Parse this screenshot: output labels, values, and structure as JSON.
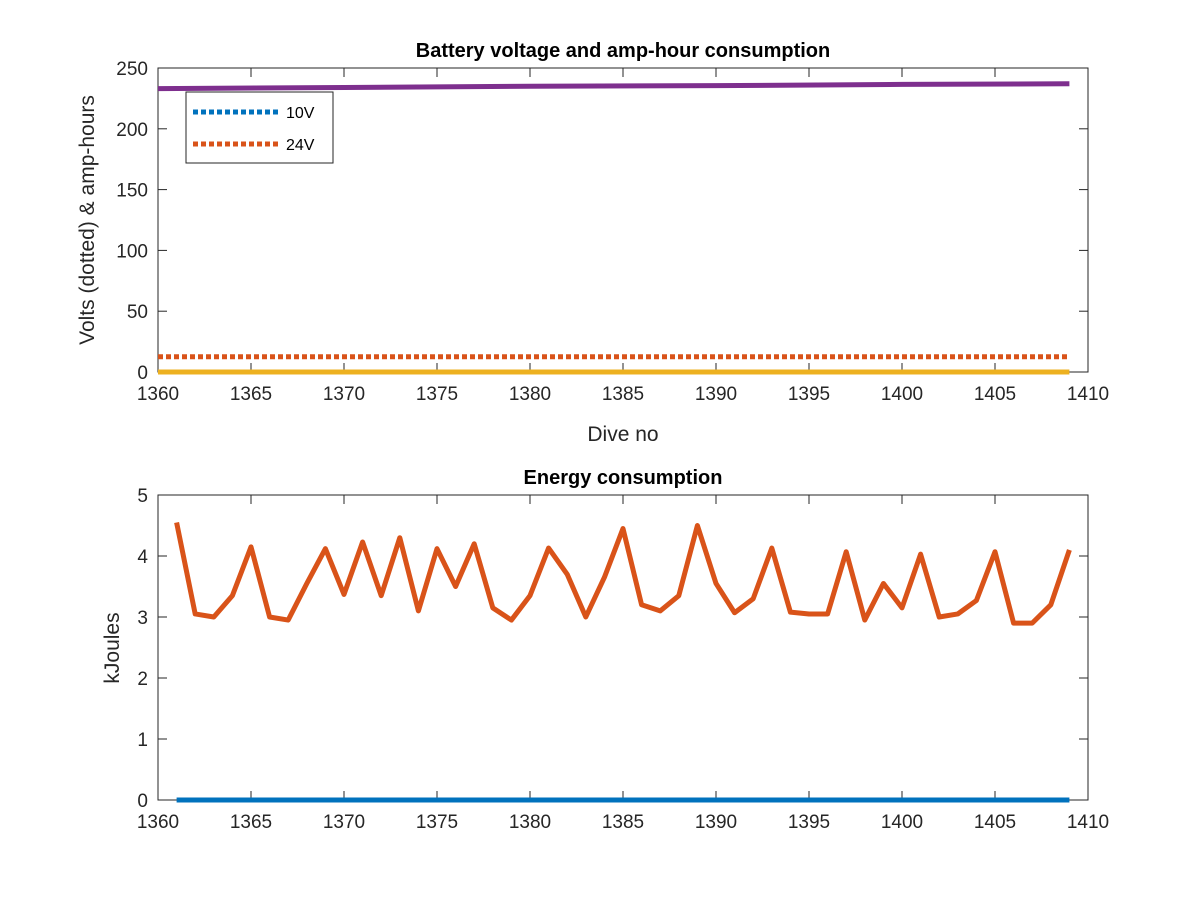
{
  "chart_data": [
    {
      "type": "line",
      "title": "Battery voltage and amp-hour consumption",
      "xlabel": "Dive no",
      "ylabel": "Volts (dotted) & amp-hours",
      "xlim": [
        1360,
        1410
      ],
      "ylim": [
        0,
        250
      ],
      "xticks": [
        "1360",
        "1365",
        "1370",
        "1375",
        "1380",
        "1385",
        "1390",
        "1395",
        "1400",
        "1405",
        "1410"
      ],
      "yticks": [
        "0",
        "50",
        "100",
        "150",
        "200",
        "250"
      ],
      "grid": false,
      "legend_position": "top-left",
      "series": [
        {
          "name": "10V",
          "style": "dotted",
          "color": "#0072BD",
          "x": [
            1360,
            1409
          ],
          "y": [
            0,
            0
          ]
        },
        {
          "name": "24V",
          "style": "dotted",
          "color": "#D95319",
          "x": [
            1360,
            1409
          ],
          "y": [
            12.5,
            12.5
          ]
        },
        {
          "style": "solid",
          "color": "#EDB120",
          "x": [
            1360,
            1409
          ],
          "y": [
            0,
            0
          ]
        },
        {
          "style": "solid",
          "color": "#7E2F8E",
          "x": [
            1360,
            1370,
            1380,
            1390,
            1400,
            1409
          ],
          "y": [
            233,
            234,
            235,
            235.5,
            236.5,
            237
          ]
        }
      ]
    },
    {
      "type": "line",
      "title": "Energy consumption",
      "xlabel": "",
      "ylabel": "kJoules",
      "xlim": [
        1360,
        1410
      ],
      "ylim": [
        0,
        5
      ],
      "xticks": [
        "1360",
        "1365",
        "1370",
        "1375",
        "1380",
        "1385",
        "1390",
        "1395",
        "1400",
        "1405",
        "1410"
      ],
      "yticks": [
        "0",
        "1",
        "2",
        "3",
        "4",
        "5"
      ],
      "grid": false,
      "series": [
        {
          "style": "solid",
          "color": "#0072BD",
          "x": [
            1361,
            1409
          ],
          "y": [
            0,
            0
          ]
        },
        {
          "style": "solid",
          "color": "#D95319",
          "x": [
            1361,
            1362,
            1363,
            1364,
            1365,
            1366,
            1367,
            1368,
            1369,
            1370,
            1371,
            1372,
            1373,
            1374,
            1375,
            1376,
            1377,
            1378,
            1379,
            1380,
            1381,
            1382,
            1383,
            1384,
            1385,
            1386,
            1387,
            1388,
            1389,
            1390,
            1391,
            1392,
            1393,
            1394,
            1395,
            1396,
            1397,
            1398,
            1399,
            1400,
            1401,
            1402,
            1403,
            1404,
            1405,
            1406,
            1407,
            1408,
            1409
          ],
          "y": [
            4.55,
            3.05,
            3.0,
            3.35,
            4.15,
            3.0,
            2.95,
            3.55,
            4.12,
            3.37,
            4.23,
            3.35,
            4.3,
            3.1,
            4.12,
            3.5,
            4.2,
            3.15,
            2.95,
            3.35,
            4.13,
            3.7,
            3.0,
            3.65,
            4.45,
            3.2,
            3.1,
            3.35,
            4.5,
            3.55,
            3.07,
            3.3,
            4.13,
            3.08,
            3.05,
            3.05,
            4.07,
            2.95,
            3.55,
            3.15,
            4.03,
            3.0,
            3.05,
            3.27,
            4.07,
            2.9,
            2.9,
            3.2,
            4.1
          ]
        }
      ]
    }
  ]
}
